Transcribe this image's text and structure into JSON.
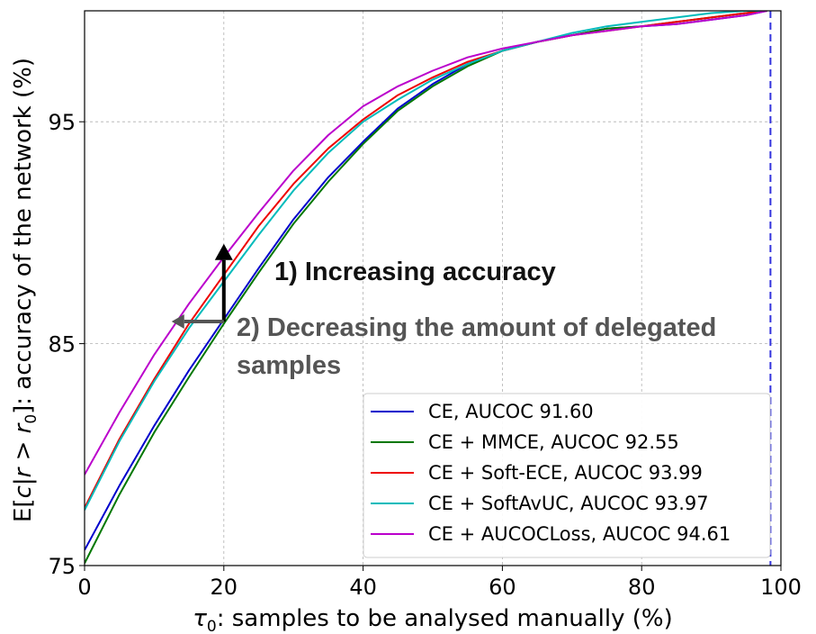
{
  "chart_data": {
    "type": "line",
    "xlabel_math": "τ",
    "xlabel_sub": "0",
    "xlabel_rest": ": samples to be analysed manually (%)",
    "ylabel_pre": "E[",
    "ylabel_math": "c|r > r",
    "ylabel_sub": "0",
    "ylabel_rest": "]: accuracy of the network (%)",
    "xlim": [
      0,
      100
    ],
    "ylim": [
      75,
      100
    ],
    "xticks": [
      0,
      20,
      40,
      60,
      80,
      100
    ],
    "yticks": [
      75,
      85,
      95
    ],
    "xtick_labels": [
      "0",
      "20",
      "40",
      "60",
      "80",
      "100"
    ],
    "ytick_labels": [
      "75",
      "85",
      "95"
    ],
    "grid": true,
    "reference_line_x": 98.5,
    "legend_position": "lower-right",
    "annotations": {
      "increasing": "1) Increasing accuracy",
      "decreasing_line1": "2) Decreasing the amount of delegated",
      "decreasing_line2": "samples"
    },
    "arrows": {
      "up": {
        "x": 20,
        "y_from": 86,
        "y_to": 89.5
      },
      "left": {
        "y": 86,
        "x_from": 20,
        "x_to": 12.5
      }
    },
    "series": [
      {
        "name": "CE, AUCOC 91.60",
        "color": "#0000cc",
        "x": [
          0,
          5,
          10,
          15,
          20,
          25,
          30,
          35,
          40,
          45,
          50,
          55,
          60,
          65,
          70,
          75,
          80,
          85,
          90,
          95,
          98
        ],
        "y": [
          75.7,
          78.6,
          81.3,
          83.8,
          86.1,
          88.4,
          90.6,
          92.5,
          94.1,
          95.6,
          96.7,
          97.6,
          98.2,
          98.6,
          98.9,
          99.2,
          99.3,
          99.4,
          99.6,
          99.8,
          100
        ]
      },
      {
        "name": "CE + MMCE, AUCOC 92.55",
        "color": "#007700",
        "x": [
          0,
          5,
          10,
          15,
          20,
          25,
          30,
          35,
          40,
          45,
          50,
          55,
          60,
          65,
          70,
          75,
          80,
          85,
          90,
          95,
          98
        ],
        "y": [
          75.1,
          78.2,
          81.0,
          83.5,
          85.9,
          88.2,
          90.4,
          92.3,
          94.0,
          95.5,
          96.6,
          97.5,
          98.2,
          98.6,
          98.9,
          99.2,
          99.3,
          99.5,
          99.7,
          99.9,
          100
        ]
      },
      {
        "name": "CE + Soft-ECE, AUCOC 93.99",
        "color": "#ee0000",
        "x": [
          0,
          5,
          10,
          15,
          20,
          25,
          30,
          35,
          40,
          45,
          50,
          55,
          60,
          65,
          70,
          75,
          80,
          85,
          90,
          95,
          98
        ],
        "y": [
          77.6,
          80.7,
          83.4,
          85.9,
          88.1,
          90.3,
          92.2,
          93.8,
          95.1,
          96.2,
          97.0,
          97.7,
          98.2,
          98.6,
          98.9,
          99.1,
          99.3,
          99.5,
          99.7,
          99.9,
          100
        ]
      },
      {
        "name": "CE + SoftAvUC, AUCOC 93.97",
        "color": "#00bbbb",
        "x": [
          0,
          5,
          10,
          15,
          20,
          25,
          30,
          35,
          40,
          45,
          50,
          55,
          60,
          65,
          70,
          75,
          80,
          85,
          90,
          95,
          98
        ],
        "y": [
          77.5,
          80.6,
          83.3,
          85.7,
          87.8,
          89.9,
          91.9,
          93.6,
          95.0,
          96.0,
          96.9,
          97.6,
          98.2,
          98.6,
          99.0,
          99.3,
          99.5,
          99.7,
          99.9,
          100,
          100
        ]
      },
      {
        "name": "CE + AUCOCLoss, AUCOC 94.61",
        "color": "#bb00cc",
        "x": [
          0,
          5,
          10,
          15,
          20,
          25,
          30,
          35,
          40,
          45,
          50,
          55,
          60,
          65,
          70,
          75,
          80,
          85,
          90,
          95,
          98
        ],
        "y": [
          79.1,
          81.9,
          84.5,
          86.8,
          88.9,
          90.9,
          92.8,
          94.4,
          95.7,
          96.6,
          97.3,
          97.9,
          98.3,
          98.6,
          98.9,
          99.1,
          99.3,
          99.4,
          99.6,
          99.8,
          100
        ]
      }
    ]
  }
}
